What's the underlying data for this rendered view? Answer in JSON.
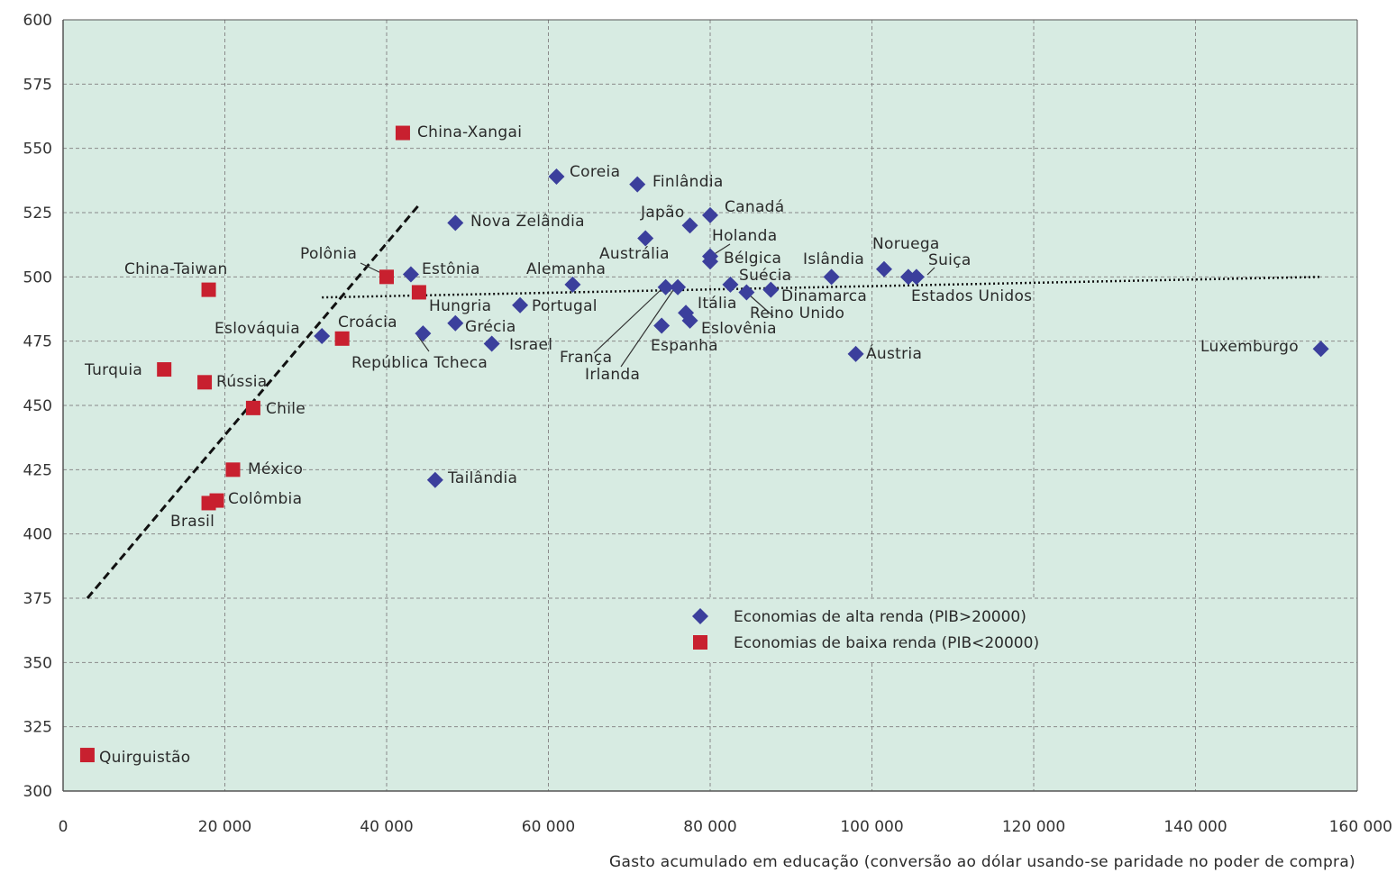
{
  "chart_data": {
    "type": "scatter",
    "xlabel": "Gasto acumulado em educação (conversão ao dólar usando-se paridade no poder de compra)",
    "ylabel": "",
    "xlim": [
      0,
      160000
    ],
    "ylim": [
      300,
      600
    ],
    "x_ticks": [
      "0",
      "20 000",
      "40 000",
      "60 000",
      "80 000",
      "100 000",
      "120 000",
      "140 000",
      "160 000"
    ],
    "y_ticks": [
      "300",
      "325",
      "350",
      "375",
      "400",
      "425",
      "450",
      "475",
      "500",
      "525",
      "550",
      "575",
      "600"
    ],
    "grid": true,
    "colors": {
      "plot_bg": "#d7ebe2",
      "high": "#3b3f9c",
      "low": "#c8202f",
      "grid": "#8a8a8a"
    },
    "legend": {
      "position": "bottom-right",
      "items": [
        {
          "label": "Economias de alta renda (PIB>20000)",
          "marker": "diamond",
          "color": "#3b3f9c"
        },
        {
          "label": "Economias de baixa renda (PIB<20000)",
          "marker": "square",
          "color": "#c8202f"
        }
      ]
    },
    "series": [
      {
        "name": "Economias de alta renda (PIB>20000)",
        "marker": "diamond",
        "points": [
          {
            "label": "Coreia",
            "x": 61000,
            "y": 539
          },
          {
            "label": "Finlândia",
            "x": 71000,
            "y": 536
          },
          {
            "label": "Nova Zelândia",
            "x": 48500,
            "y": 521
          },
          {
            "label": "Japão",
            "x": 77500,
            "y": 520
          },
          {
            "label": "Canadá",
            "x": 80000,
            "y": 524
          },
          {
            "label": "Austrália",
            "x": 72000,
            "y": 515
          },
          {
            "label": "Holanda",
            "x": 80000,
            "y": 508
          },
          {
            "label": "Bélgica",
            "x": 80000,
            "y": 506
          },
          {
            "label": "Estônia",
            "x": 43000,
            "y": 501
          },
          {
            "label": "Alemanha",
            "x": 63000,
            "y": 497
          },
          {
            "label": "Islândia",
            "x": 95000,
            "y": 500
          },
          {
            "label": "Noruega",
            "x": 101500,
            "y": 503
          },
          {
            "label": "Suíça",
            "x": 104500,
            "y": 500
          },
          {
            "label": "Estados Unidos",
            "x": 105500,
            "y": 500
          },
          {
            "label": "Suécia",
            "x": 82500,
            "y": 497
          },
          {
            "label": "Reino Unido",
            "x": 84500,
            "y": 494
          },
          {
            "label": "Dinamarca",
            "x": 87500,
            "y": 495
          },
          {
            "label": "França",
            "x": 74500,
            "y": 496
          },
          {
            "label": "Irlanda",
            "x": 76000,
            "y": 496
          },
          {
            "label": "Portugal",
            "x": 56500,
            "y": 489
          },
          {
            "label": "Hungria",
            "x": 48500,
            "y": 482
          },
          {
            "label": "República Tcheca",
            "x": 44500,
            "y": 478
          },
          {
            "label": "Eslováquia",
            "x": 32000,
            "y": 477
          },
          {
            "label": "Israel",
            "x": 53000,
            "y": 474
          },
          {
            "label": "Itália",
            "x": 77000,
            "y": 486
          },
          {
            "label": "Eslovênia",
            "x": 77500,
            "y": 483
          },
          {
            "label": "Espanha",
            "x": 74000,
            "y": 481
          },
          {
            "label": "Áustria",
            "x": 98000,
            "y": 470
          },
          {
            "label": "Luxemburgo",
            "x": 155500,
            "y": 472
          },
          {
            "label": "Tailândia",
            "x": 46000,
            "y": 421
          }
        ]
      },
      {
        "name": "Economias de baixa renda (PIB<20000)",
        "marker": "square",
        "points": [
          {
            "label": "China-Xangai",
            "x": 42000,
            "y": 556
          },
          {
            "label": "China-Taiwan",
            "x": 18000,
            "y": 495
          },
          {
            "label": "Polônia",
            "x": 40000,
            "y": 500
          },
          {
            "label": "Hungria",
            "x": 44000,
            "y": 494
          },
          {
            "label": "Croácia",
            "x": 34500,
            "y": 476
          },
          {
            "label": "Turquia",
            "x": 12500,
            "y": 464
          },
          {
            "label": "Rússia",
            "x": 17500,
            "y": 459
          },
          {
            "label": "Chile",
            "x": 23500,
            "y": 449
          },
          {
            "label": "México",
            "x": 21000,
            "y": 425
          },
          {
            "label": "Colômbia",
            "x": 19000,
            "y": 413
          },
          {
            "label": "Brasil",
            "x": 18000,
            "y": 412
          },
          {
            "label": "Quirguistão",
            "x": 3000,
            "y": 314
          }
        ]
      }
    ],
    "trend_lines": [
      {
        "style": "dashed",
        "from": [
          3000,
          375
        ],
        "to": [
          44000,
          528
        ]
      },
      {
        "style": "dotted",
        "from": [
          32000,
          492
        ],
        "to": [
          155500,
          500
        ]
      }
    ],
    "annotations": [
      {
        "text": "China-Xangai"
      },
      {
        "text": "Coreia"
      },
      {
        "text": "Finlândia"
      },
      {
        "text": "Nova Zelândia"
      },
      {
        "text": "Japão"
      },
      {
        "text": "Canadá"
      },
      {
        "text": "Holanda"
      },
      {
        "text": "Austrália"
      },
      {
        "text": "Bélgica"
      },
      {
        "text": "Polônia"
      },
      {
        "text": "Estônia"
      },
      {
        "text": "China-Taiwan"
      },
      {
        "text": "Alemanha"
      },
      {
        "text": "Islândia"
      },
      {
        "text": "Noruega"
      },
      {
        "text": "Suiça"
      },
      {
        "text": "Suécia"
      },
      {
        "text": "Dinamarca"
      },
      {
        "text": "Estados Unidos"
      },
      {
        "text": "Hungria"
      },
      {
        "text": "Portugal"
      },
      {
        "text": "Itália"
      },
      {
        "text": "Reino Unido"
      },
      {
        "text": "Croácia"
      },
      {
        "text": "Eslováquia"
      },
      {
        "text": "Grécia"
      },
      {
        "text": "Eslovênia"
      },
      {
        "text": "Israel"
      },
      {
        "text": "Espanha"
      },
      {
        "text": "República Tcheca"
      },
      {
        "text": "França"
      },
      {
        "text": "Irlanda"
      },
      {
        "text": "Áustria"
      },
      {
        "text": "Luxemburgo"
      },
      {
        "text": "Turquia"
      },
      {
        "text": "Rússia"
      },
      {
        "text": "Chile"
      },
      {
        "text": "México"
      },
      {
        "text": "Colômbia"
      },
      {
        "text": "Brasil"
      },
      {
        "text": "Tailândia"
      },
      {
        "text": "Quirguistão"
      }
    ]
  }
}
